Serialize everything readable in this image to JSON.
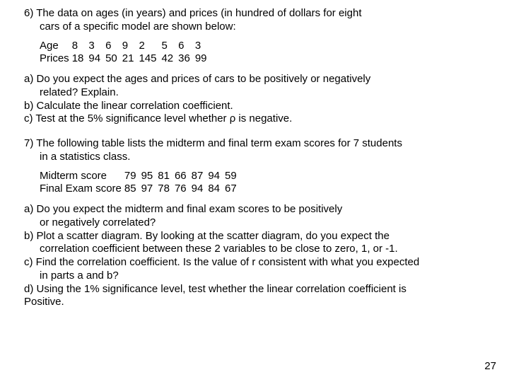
{
  "q6": {
    "intro_l1": "6) The data on ages (in years) and  prices (in hundred of dollars for eight",
    "intro_l2": "cars of a specific model are shown below:",
    "row1_label": "Age",
    "row1": [
      "8",
      "3",
      "6",
      "9",
      "2",
      "5",
      "6",
      "3"
    ],
    "row2_label": "Prices",
    "row2": [
      "18",
      "94",
      "50",
      "21",
      "145",
      "42",
      "36",
      "99"
    ],
    "a_l1": "a)   Do you expect the ages and prices of cars to be positively or negatively",
    "a_l2": "related? Explain.",
    "b": "b) Calculate the linear correlation coefficient.",
    "c": "c) Test at the 5% significance level whether ρ is negative."
  },
  "q7": {
    "intro_l1": "7) The following table lists the midterm and final term exam scores for 7 students",
    "intro_l2": "in a statistics class.",
    "row1_label": "Midterm score",
    "row1": [
      "79",
      "95",
      "81",
      "66",
      "87",
      "94",
      "59"
    ],
    "row2_label": "Final Exam score",
    "row2": [
      "85",
      "97",
      "78",
      "76",
      "94",
      "84",
      "67"
    ],
    "a_l1": "a)   Do you expect the midterm and final exam scores to be positively",
    "a_l2": "or negatively correlated?",
    "b_l1": "b) Plot a scatter diagram. By looking at the scatter diagram, do you expect the",
    "b_l2": "correlation coefficient between these 2 variables to be close to zero, 1, or -1.",
    "c_l1": "c) Find the correlation coefficient. Is the value of r consistent with what you expected",
    "c_l2": "in parts a and b?",
    "d_l1": "d) Using the 1% significance level, test whether the linear correlation coefficient is",
    "d_l2": "Positive."
  },
  "pagenum": "27"
}
